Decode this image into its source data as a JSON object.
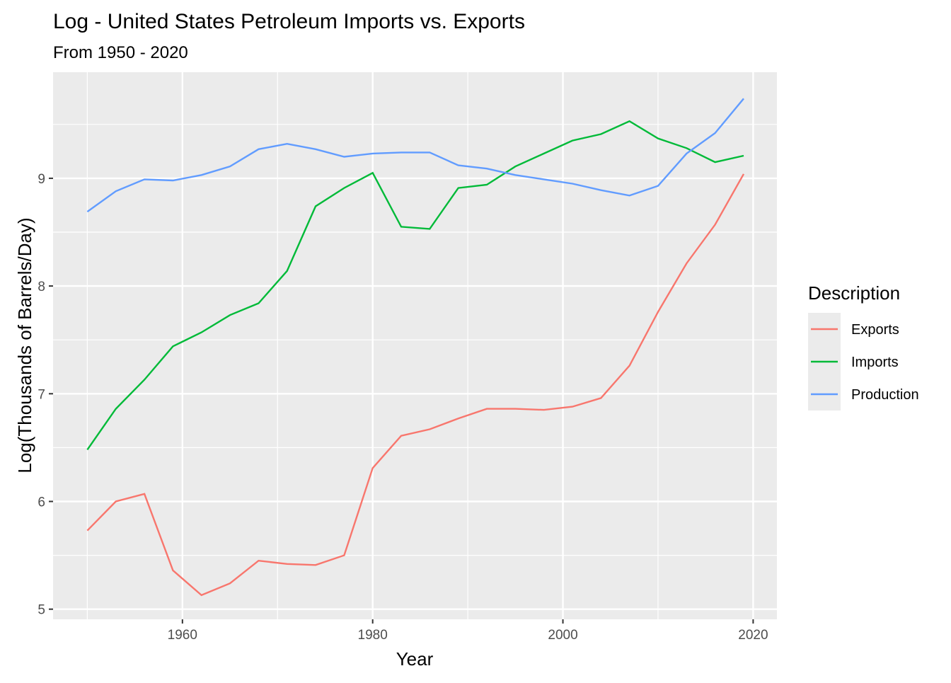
{
  "chart_data": {
    "type": "line",
    "title": "Log - United States Petroleum Imports vs. Exports",
    "subtitle": "From 1950 - 2020",
    "xlabel": "Year",
    "ylabel": "Log(Thousands of Barrels/Day)",
    "xlim": [
      1946.4,
      2022.5
    ],
    "ylim": [
      4.906,
      9.985
    ],
    "x_ticks": [
      1960,
      1980,
      2000,
      2020
    ],
    "y_ticks": [
      5,
      6,
      7,
      8,
      9
    ],
    "grid": true,
    "legend": {
      "title": "Description",
      "position": "right"
    },
    "x": [
      1950,
      1953,
      1956,
      1959,
      1962,
      1965,
      1968,
      1971,
      1974,
      1977,
      1980,
      1983,
      1986,
      1989,
      1992,
      1995,
      1998,
      2001,
      2004,
      2007,
      2010,
      2013,
      2016,
      2019
    ],
    "series": [
      {
        "name": "Exports",
        "color": "#F8766D",
        "values": [
          5.73,
          6.0,
          6.07,
          5.36,
          5.13,
          5.24,
          5.45,
          5.42,
          5.41,
          5.5,
          6.31,
          6.61,
          6.67,
          6.77,
          6.86,
          6.86,
          6.85,
          6.88,
          6.96,
          7.26,
          7.76,
          8.21,
          8.57,
          9.04
        ]
      },
      {
        "name": "Imports",
        "color": "#00BA38",
        "values": [
          6.48,
          6.86,
          7.13,
          7.44,
          7.57,
          7.73,
          7.84,
          8.14,
          8.74,
          8.91,
          9.05,
          8.55,
          8.53,
          8.91,
          8.94,
          9.11,
          9.23,
          9.35,
          9.41,
          9.53,
          9.37,
          9.28,
          9.15,
          9.21
        ]
      },
      {
        "name": "Production",
        "color": "#619CFF",
        "values": [
          8.69,
          8.88,
          8.99,
          8.98,
          9.03,
          9.11,
          9.27,
          9.32,
          9.27,
          9.2,
          9.23,
          9.24,
          9.24,
          9.12,
          9.09,
          9.03,
          8.99,
          8.95,
          8.89,
          8.84,
          8.93,
          9.23,
          9.42,
          9.74
        ]
      }
    ]
  }
}
